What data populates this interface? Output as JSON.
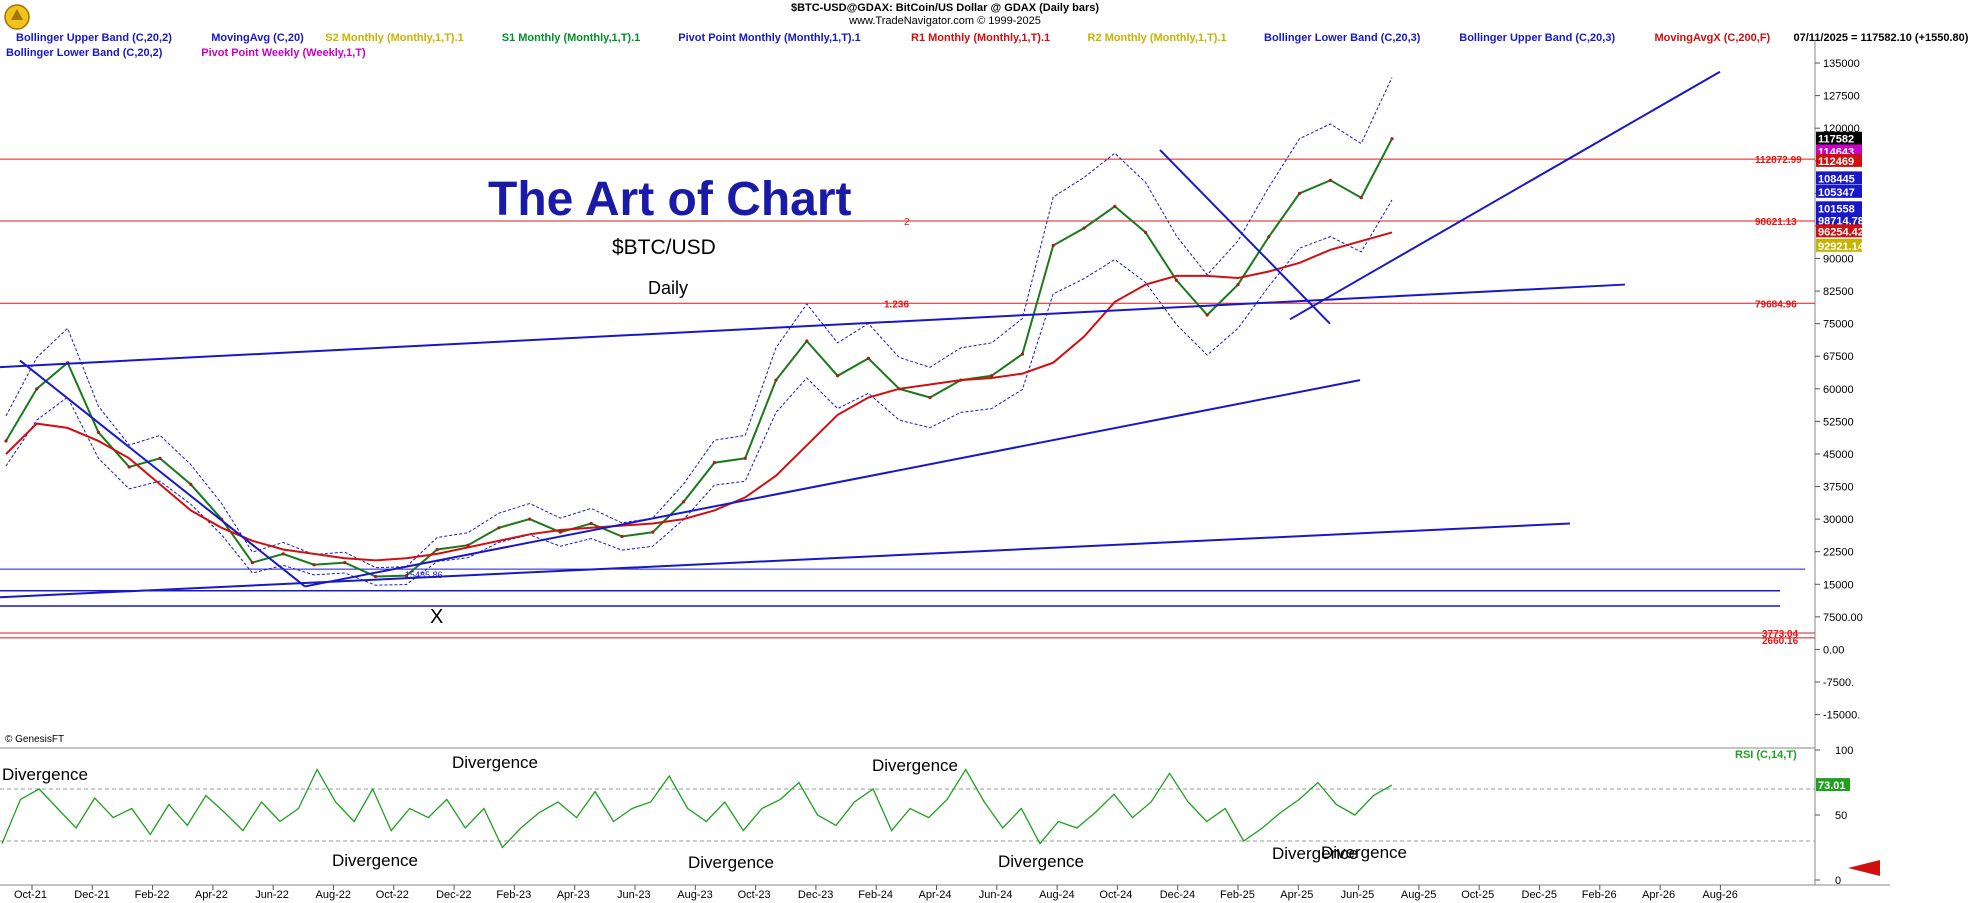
{
  "header": {
    "line1": "$BTC-USD@GDAX:  BitCoin/US Dollar @ GDAX  (Daily bars)",
    "line2": "www.TradeNavigator.com © 1999-2025"
  },
  "legend": [
    {
      "text": "Bollinger Upper Band (C,20,2)",
      "color": "#1818c8"
    },
    {
      "text": "MovingAvg (C,20)",
      "color": "#1818c8"
    },
    {
      "text": "S2 Monthly (Monthly,1,T).1",
      "color": "#c8b400"
    },
    {
      "text": "S1 Monthly (Monthly,1,T).1",
      "color": "#00902a"
    },
    {
      "text": "Pivot Point Monthly (Monthly,1,T).1",
      "color": "#1818c8"
    },
    {
      "text": "R1 Monthly (Monthly,1,T).1",
      "color": "#d01010"
    },
    {
      "text": "R2 Monthly (Monthly,1,T).1",
      "color": "#c8b400"
    },
    {
      "text": "Bollinger Lower Band (C,20,3)",
      "color": "#1818c8"
    },
    {
      "text": "Bollinger Upper Band (C,20,3)",
      "color": "#1818c8"
    },
    {
      "text": "MovingAvgX (C,200,F)",
      "color": "#d01010"
    },
    {
      "text": "07/11/2025 = 117582.10 (+1550.80)",
      "color": "#000000"
    }
  ],
  "legend_row2": [
    {
      "text": "Bollinger Lower Band (C,20,2)",
      "color": "#1818c8"
    },
    {
      "text": "Pivot Point Weekly (Weekly,1,T)",
      "color": "#c800c8"
    }
  ],
  "annotations": {
    "title": "The Art of Chart",
    "symbol": "$BTC/USD",
    "timeframe": "Daily",
    "copyright": "© GenesisFT",
    "x_mark": "X",
    "low_label": "15485.86",
    "fib_2": "2",
    "fib_1236": "1.236",
    "rsi_label": "RSI (C,14,T)"
  },
  "divergence_labels": [
    "Divergence",
    "Divergence",
    "Divergence",
    "Divergence",
    "Divergence",
    "Divergence",
    "Divergence",
    "Divergence"
  ],
  "colors": {
    "price_line": "#1818c8",
    "moving_avg_200": "#d01010",
    "rsi_line": "#20a020",
    "trendline": "#1818c8",
    "level_red": "#e01818",
    "axis_text": "#000000"
  },
  "chart_data": {
    "type": "line",
    "title": "The Art of Chart",
    "subtitle": "$BTC/USD",
    "y_ticks": [
      135000,
      127500,
      120000,
      112500,
      105000,
      97500,
      90000,
      82500,
      75000,
      67500,
      60000,
      52500,
      45000,
      37500,
      30000,
      22500,
      15000,
      7500,
      0,
      -7500,
      -15000
    ],
    "y_tick_labels": [
      "135000",
      "127500",
      "120000",
      "112500",
      "105000",
      "97500",
      "90000",
      "82500",
      "75000",
      "67500",
      "60000",
      "52500",
      "45000",
      "37500",
      "30000",
      "22500",
      "15000",
      "7500.00",
      "0.00",
      "-7500.",
      "-15000."
    ],
    "ylim": [
      -22000,
      138000
    ],
    "x_tick_labels": [
      "Oct-21",
      "Dec-21",
      "Feb-22",
      "Apr-22",
      "Jun-22",
      "Aug-22",
      "Oct-22",
      "Dec-22",
      "Feb-23",
      "Apr-23",
      "Jun-23",
      "Aug-23",
      "Oct-23",
      "Dec-23",
      "Feb-24",
      "Apr-24",
      "Jun-24",
      "Aug-24",
      "Oct-24",
      "Dec-24",
      "Feb-25",
      "Apr-25",
      "Jun-25",
      "Aug-25",
      "Oct-25",
      "Dec-25",
      "Feb-26",
      "Apr-26",
      "Aug-26"
    ],
    "series": [
      {
        "name": "$BTC-USD@GDAX",
        "values": [
          48000,
          60000,
          66000,
          50000,
          42000,
          44000,
          38000,
          30000,
          20000,
          22000,
          19500,
          20000,
          16800,
          17000,
          23000,
          24000,
          28000,
          30000,
          27000,
          29000,
          26000,
          27000,
          34000,
          43000,
          44000,
          62000,
          71000,
          63000,
          67000,
          60000,
          58000,
          62000,
          63000,
          68000,
          93000,
          97000,
          102000,
          96000,
          85000,
          77000,
          84000,
          95000,
          105000,
          108000,
          104000,
          117582
        ]
      },
      {
        "name": "MovingAvgX (C,200,F)",
        "values": [
          45000,
          52000,
          51000,
          48000,
          44000,
          38000,
          32000,
          28000,
          25000,
          23000,
          22000,
          21000,
          20500,
          21000,
          22000,
          23500,
          25000,
          26500,
          27500,
          28000,
          28500,
          29000,
          30000,
          32000,
          35000,
          40000,
          47000,
          54000,
          58000,
          60000,
          61000,
          62000,
          62500,
          63500,
          66000,
          72000,
          80000,
          84000,
          86000,
          86000,
          85500,
          87000,
          89000,
          92000,
          94000,
          96000
        ]
      }
    ],
    "rsi": {
      "name": "RSI (C,14,T)",
      "ticks": [
        0,
        50,
        100
      ],
      "levels": [
        30,
        70
      ],
      "last_value": 73.01,
      "values": [
        28,
        62,
        70,
        55,
        40,
        63,
        48,
        55,
        35,
        58,
        42,
        65,
        52,
        38,
        60,
        45,
        55,
        85,
        60,
        45,
        70,
        38,
        55,
        48,
        62,
        40,
        55,
        25,
        40,
        52,
        60,
        48,
        68,
        45,
        55,
        60,
        80,
        55,
        45,
        60,
        38,
        55,
        62,
        75,
        50,
        42,
        60,
        70,
        38,
        55,
        48,
        62,
        85,
        60,
        40,
        55,
        28,
        45,
        40,
        52,
        66,
        48,
        60,
        82,
        60,
        45,
        55,
        30,
        40,
        52,
        62,
        75,
        58,
        50,
        65,
        73
      ]
    },
    "levels": [
      {
        "label": "112872.99",
        "value": 112872.99
      },
      {
        "label": "98621.13",
        "value": 98621.13
      },
      {
        "label": "79684.96",
        "value": 79684.96
      },
      {
        "label": "3773.04",
        "value": 3773.04
      },
      {
        "label": "2660.16",
        "value": 2660.16
      }
    ],
    "last_value_tags": [
      {
        "label": "117582",
        "value": 117582,
        "color": "#000000"
      },
      {
        "label": "114643",
        "value": 114643,
        "color": "#c800c8"
      },
      {
        "label": "112469",
        "value": 112469,
        "color": "#d01010"
      },
      {
        "label": "108445",
        "value": 108445,
        "color": "#1818c8"
      },
      {
        "label": "105347",
        "value": 105347,
        "color": "#1818c8"
      },
      {
        "label": "101558",
        "value": 101558,
        "color": "#1818c8"
      },
      {
        "label": "98714.78",
        "value": 98714.78,
        "color": "#1818c8"
      },
      {
        "label": "96254.42",
        "value": 96254.42,
        "color": "#d01010"
      },
      {
        "label": "92921.14",
        "value": 92921.14,
        "color": "#c8b400"
      }
    ],
    "grid": false
  }
}
